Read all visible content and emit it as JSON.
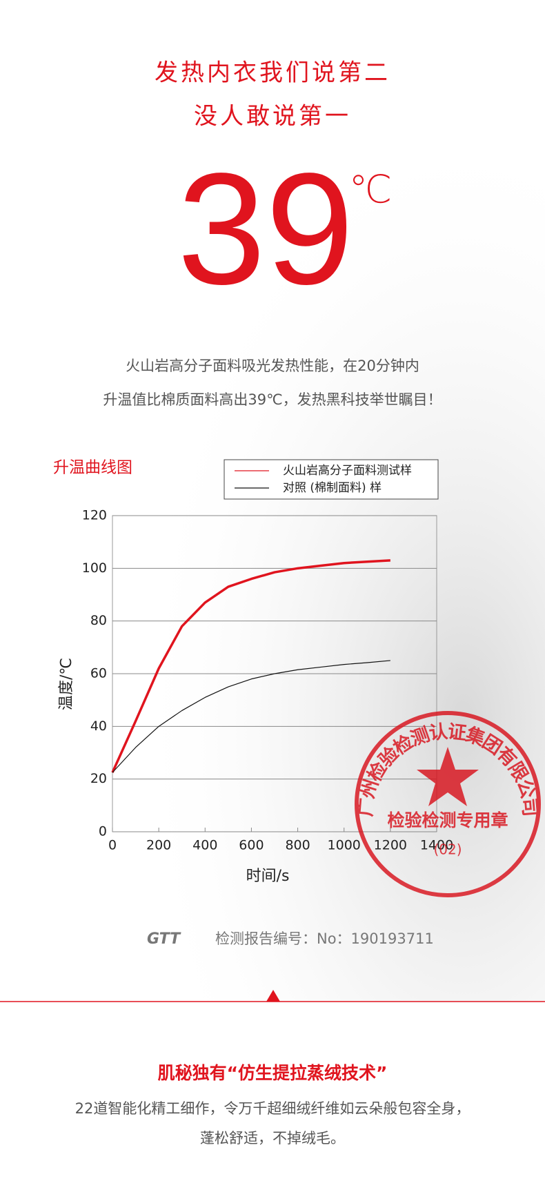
{
  "header": {
    "title_lines": [
      "发热内衣我们说第二",
      "没人敢说第一"
    ],
    "big_number": "39",
    "big_unit": "℃"
  },
  "description": [
    "火山岩高分子面料吸光发热性能，在20分钟内",
    "升温值比棉质面料高出39℃，发热黑科技举世瞩目！"
  ],
  "chart_data": {
    "type": "line",
    "title": "升温曲线图",
    "x_label": "时间/s",
    "y_label": "温度/℃",
    "x": [
      0,
      100,
      200,
      300,
      400,
      500,
      600,
      700,
      800,
      900,
      1000,
      1100,
      1200
    ],
    "series": [
      {
        "name": "火山岩高分子面料测试样",
        "color": "#e0141e",
        "values": [
          22.5,
          42,
          62,
          78,
          87,
          93,
          96,
          98.5,
          100,
          101,
          102,
          102.5,
          103
        ]
      },
      {
        "name": "对照 (棉制面料) 样",
        "color": "#111111",
        "values": [
          22.5,
          32,
          40,
          46,
          51,
          55,
          58,
          60,
          61.5,
          62.5,
          63.5,
          64.2,
          65
        ]
      }
    ],
    "xlim": [
      0,
      1400
    ],
    "xticks": [
      0,
      200,
      400,
      600,
      800,
      1000,
      1200,
      1400
    ],
    "ylim": [
      0,
      120
    ],
    "yticks": [
      0,
      20,
      40,
      60,
      80,
      100,
      120
    ],
    "grid": true,
    "legend": "top-right"
  },
  "stamp": {
    "ring_text": "广州检验检测认证集团有限公司",
    "center_text": "检验检测专用章",
    "code": "(02)"
  },
  "report": {
    "logo": "GTT",
    "number": "检测报告编号：No：190193711"
  },
  "feature": {
    "title": "肌秘独有“仿生提拉蒸绒技术”",
    "lines": [
      "22道智能化精工细作，令万千超细绒纤维如云朵般包容全身，",
      "蓬松舒适，不掉绒毛。"
    ]
  }
}
